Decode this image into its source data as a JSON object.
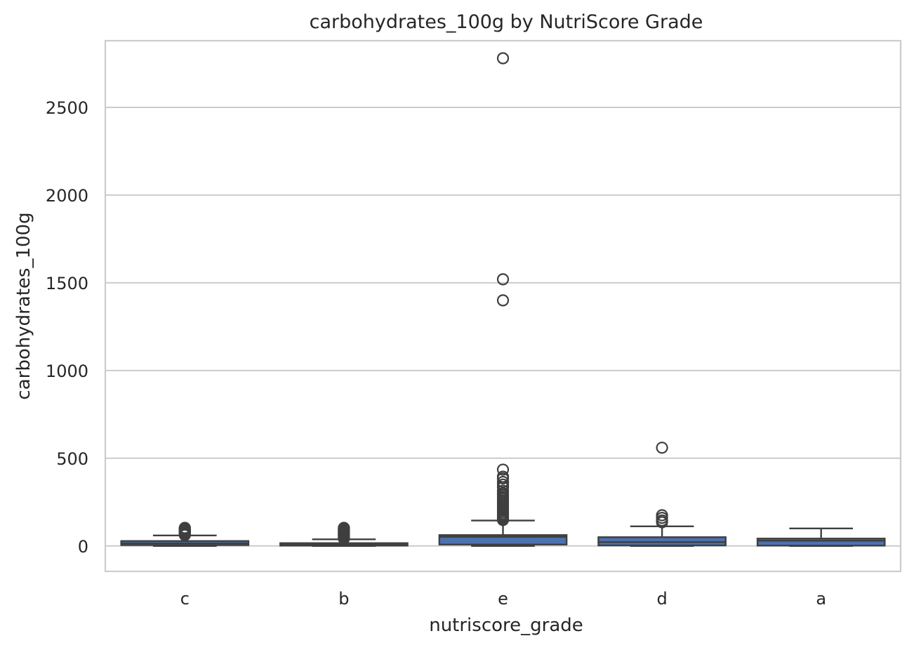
{
  "chart_data": {
    "type": "box",
    "title": "carbohydrates_100g by NutriScore Grade",
    "xlabel": "nutriscore_grade",
    "ylabel": "carbohydrates_100g",
    "categories": [
      "c",
      "b",
      "e",
      "d",
      "a"
    ],
    "ylim": [
      -145,
      2880
    ],
    "yticks": [
      0,
      500,
      1000,
      1500,
      2000,
      2500
    ],
    "grid": "horizontal",
    "box_color": "#4c72b0",
    "edge_color": "#3f3f3f",
    "boxes": [
      {
        "category": "c",
        "whisker_low": 0,
        "q1": 5,
        "median": 15,
        "q3": 28,
        "whisker_high": 60,
        "fliers": [
          62,
          65,
          68,
          72,
          75,
          78,
          82,
          85,
          88,
          92,
          95,
          98,
          100,
          103
        ]
      },
      {
        "category": "b",
        "whisker_low": 0,
        "q1": 2,
        "median": 7,
        "q3": 16,
        "whisker_high": 38,
        "fliers": [
          42,
          46,
          50,
          55,
          60,
          64,
          68,
          72,
          76,
          80,
          85,
          90,
          95,
          100,
          103
        ]
      },
      {
        "category": "e",
        "whisker_low": 0,
        "q1": 8,
        "median": 52,
        "q3": 62,
        "whisker_high": 145,
        "fliers": [
          148,
          152,
          158,
          165,
          172,
          180,
          190,
          200,
          210,
          220,
          230,
          240,
          250,
          260,
          270,
          280,
          290,
          300,
          315,
          335,
          350,
          365,
          385,
          395,
          435,
          1400,
          1520,
          2780
        ]
      },
      {
        "category": "d",
        "whisker_low": 0,
        "q1": 3,
        "median": 22,
        "q3": 50,
        "whisker_high": 112,
        "fliers": [
          135,
          145,
          160,
          175,
          560
        ]
      },
      {
        "category": "a",
        "whisker_low": 0,
        "q1": 2,
        "median": 30,
        "q3": 42,
        "whisker_high": 100,
        "fliers": []
      }
    ]
  }
}
